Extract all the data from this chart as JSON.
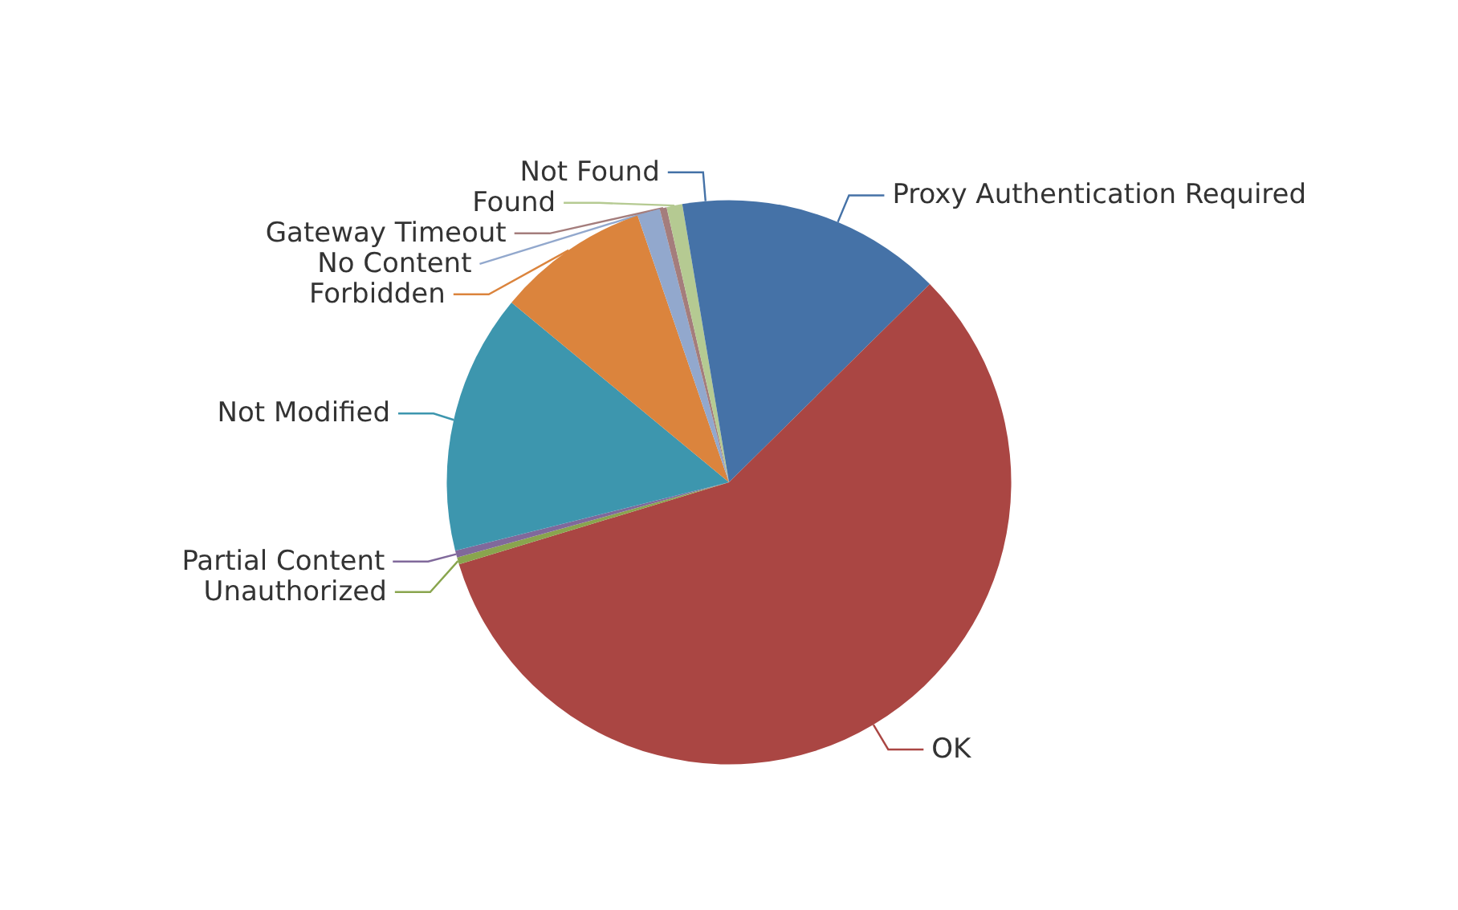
{
  "chart_data": {
    "type": "pie",
    "categories": [
      "Proxy Authentication Required",
      "OK",
      "Unauthorized",
      "Partial Content",
      "Not Modified",
      "Forbidden",
      "No Content",
      "Gateway Timeout",
      "Found",
      "Not Found"
    ],
    "values": [
      12.6,
      57.7,
      0.4,
      0.4,
      14.9,
      8.75,
      1.3,
      0.4,
      0.9,
      2.65
    ],
    "colors": [
      "#4572a7",
      "#aa4643",
      "#89a54e",
      "#80699b",
      "#3d96ae",
      "#db843d",
      "#92a8cd",
      "#a47d7c",
      "#b5ca92",
      "#4572a7"
    ],
    "legend": false
  }
}
